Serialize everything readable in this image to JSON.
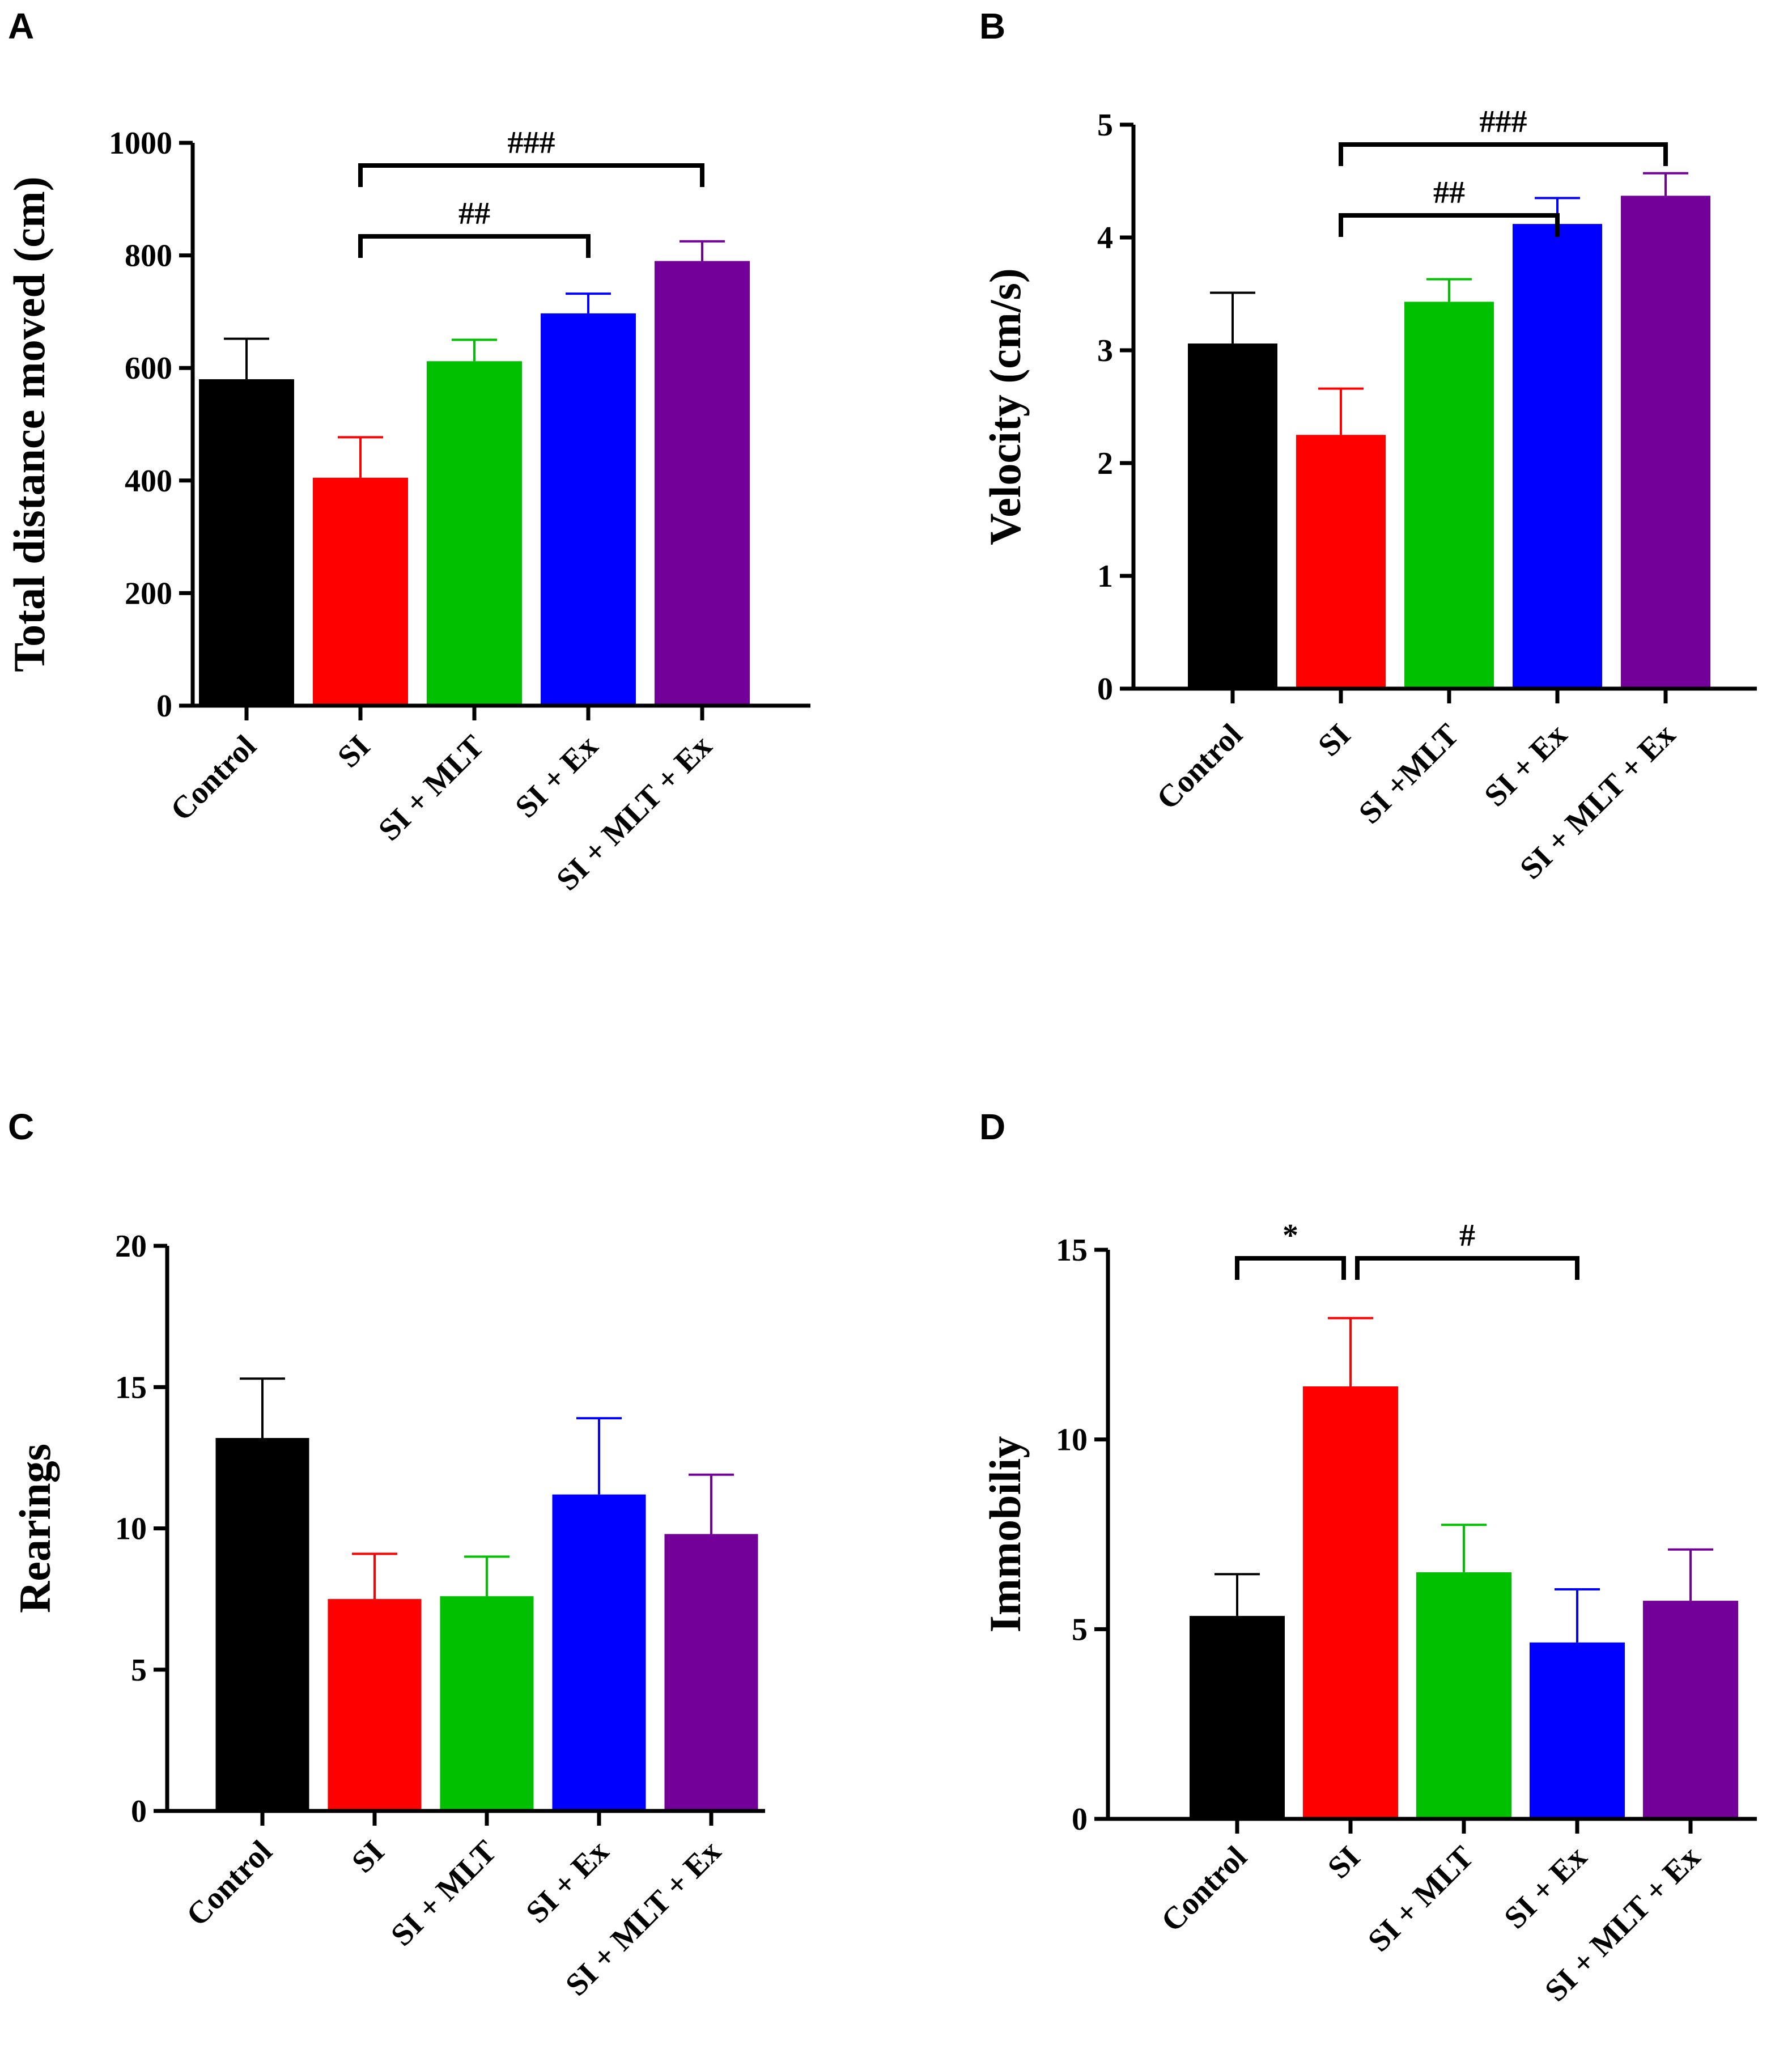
{
  "chart_data": [
    {
      "panel": "A",
      "type": "bar",
      "categories": [
        "Control",
        "SI",
        "SI + MLT",
        "SI + Ex",
        "SI + MLT + Ex"
      ],
      "values": [
        580,
        405,
        612,
        697,
        790
      ],
      "errors": [
        72,
        72,
        38,
        35,
        35
      ],
      "colors": [
        "#000000",
        "#ff0000",
        "#00c000",
        "#0000ff",
        "#730099"
      ],
      "ylabel": "Total distance moved (cm)",
      "ylim": [
        0,
        1000
      ],
      "yticks": [
        0,
        200,
        400,
        600,
        800,
        1000
      ],
      "significance": [
        {
          "from": 1,
          "to": 3,
          "label": "##"
        },
        {
          "from": 1,
          "to": 4,
          "label": "###"
        }
      ]
    },
    {
      "panel": "B",
      "type": "bar",
      "categories": [
        "Control",
        "SI",
        "SI +MLT",
        "SI + Ex",
        "SI + MLT + Ex"
      ],
      "values": [
        3.06,
        2.25,
        3.43,
        4.12,
        4.37
      ],
      "errors": [
        0.45,
        0.41,
        0.2,
        0.23,
        0.2
      ],
      "colors": [
        "#000000",
        "#ff0000",
        "#00c000",
        "#0000ff",
        "#730099"
      ],
      "ylabel": "Velocity (cm/s)",
      "ylim": [
        0,
        5
      ],
      "yticks": [
        0,
        1,
        2,
        3,
        4,
        5
      ],
      "significance": [
        {
          "from": 1,
          "to": 3,
          "label": "##"
        },
        {
          "from": 1,
          "to": 4,
          "label": "###"
        }
      ]
    },
    {
      "panel": "C",
      "type": "bar",
      "categories": [
        "Control",
        "SI",
        "SI + MLT",
        "SI + Ex",
        "SI + MLT + Ex"
      ],
      "values": [
        13.2,
        7.5,
        7.6,
        11.2,
        9.8
      ],
      "errors": [
        2.1,
        1.6,
        1.4,
        2.7,
        2.1
      ],
      "colors": [
        "#000000",
        "#ff0000",
        "#00c000",
        "#0000ff",
        "#730099"
      ],
      "ylabel": "Rearings",
      "ylim": [
        0,
        20
      ],
      "yticks": [
        0,
        5,
        10,
        15,
        20
      ],
      "significance": []
    },
    {
      "panel": "D",
      "type": "bar",
      "categories": [
        "Control",
        "SI",
        "SI + MLT",
        "SI + Ex",
        "SI + MLT + Ex"
      ],
      "values": [
        5.35,
        11.4,
        6.5,
        4.65,
        5.75
      ],
      "errors": [
        1.1,
        1.8,
        1.25,
        1.4,
        1.35
      ],
      "colors": [
        "#000000",
        "#ff0000",
        "#00c000",
        "#0000ff",
        "#730099"
      ],
      "ylabel": "Immobiliy",
      "ylim": [
        0,
        15
      ],
      "yticks": [
        0,
        5,
        10,
        15
      ],
      "significance": [
        {
          "from": 0,
          "to": 1,
          "label": "*"
        },
        {
          "from": 1,
          "to": 3,
          "label": "#"
        }
      ]
    }
  ]
}
